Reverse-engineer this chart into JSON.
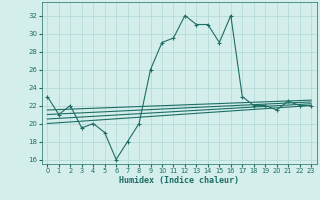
{
  "title": "",
  "xlabel": "Humidex (Indice chaleur)",
  "ylabel": "",
  "background_color": "#d4eeec",
  "grid_color": "#afd8d4",
  "line_color": "#1e6e64",
  "xlim": [
    -0.5,
    23.5
  ],
  "ylim": [
    15.5,
    33.5
  ],
  "xticks": [
    0,
    1,
    2,
    3,
    4,
    5,
    6,
    7,
    8,
    9,
    10,
    11,
    12,
    13,
    14,
    15,
    16,
    17,
    18,
    19,
    20,
    21,
    22,
    23
  ],
  "yticks": [
    16,
    18,
    20,
    22,
    24,
    26,
    28,
    30,
    32
  ],
  "line1_x": [
    0,
    1,
    2,
    3,
    4,
    5,
    6,
    7,
    8,
    9,
    10,
    11,
    12,
    13,
    14,
    15,
    16,
    17,
    18,
    19,
    20,
    21,
    22,
    23
  ],
  "line1_y": [
    23,
    21,
    22,
    19.5,
    20,
    19,
    16,
    18,
    20,
    26,
    29,
    29.5,
    32,
    31,
    31,
    29,
    32,
    23,
    22,
    22,
    21.5,
    22.5,
    22,
    22
  ],
  "line2_x": [
    0,
    23
  ],
  "line2_y": [
    20.0,
    22.0
  ],
  "line3_x": [
    0,
    23
  ],
  "line3_y": [
    20.5,
    22.2
  ],
  "line4_x": [
    0,
    23
  ],
  "line4_y": [
    21.0,
    22.4
  ],
  "line5_x": [
    0,
    23
  ],
  "line5_y": [
    21.5,
    22.6
  ]
}
